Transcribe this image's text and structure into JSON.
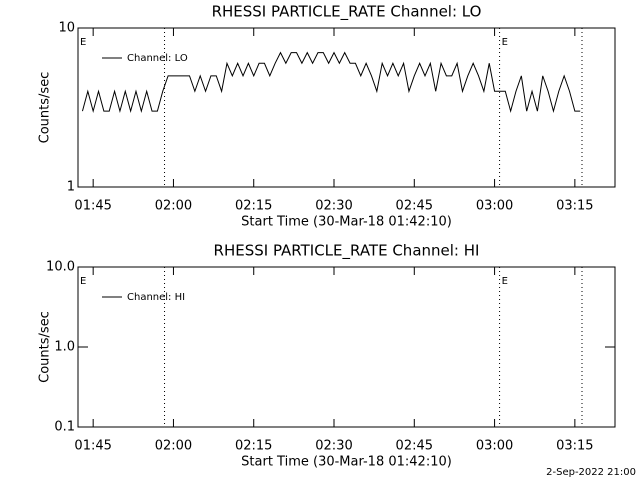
{
  "chart_data": [
    {
      "type": "line",
      "title": "RHESSI PARTICLE_RATE Channel: LO",
      "xlabel": "Start Time (30-Mar-18 01:42:10)",
      "ylabel": "Counts/sec",
      "x": [
        "01:43",
        "01:44",
        "01:45",
        "01:46",
        "01:47",
        "01:48",
        "01:49",
        "01:50",
        "01:51",
        "01:52",
        "01:53",
        "01:54",
        "01:55",
        "01:56",
        "01:57",
        "01:58",
        "01:59",
        "02:00",
        "02:01",
        "02:02",
        "02:03",
        "02:04",
        "02:05",
        "02:06",
        "02:07",
        "02:08",
        "02:09",
        "02:10",
        "02:11",
        "02:12",
        "02:13",
        "02:14",
        "02:15",
        "02:16",
        "02:17",
        "02:18",
        "02:19",
        "02:20",
        "02:21",
        "02:22",
        "02:23",
        "02:24",
        "02:25",
        "02:26",
        "02:27",
        "02:28",
        "02:29",
        "02:30",
        "02:31",
        "02:32",
        "02:33",
        "02:34",
        "02:35",
        "02:36",
        "02:37",
        "02:38",
        "02:39",
        "02:40",
        "02:41",
        "02:42",
        "02:43",
        "02:44",
        "02:45",
        "02:46",
        "02:47",
        "02:48",
        "02:49",
        "02:50",
        "02:51",
        "02:52",
        "02:53",
        "02:54",
        "02:55",
        "02:56",
        "02:57",
        "02:58",
        "02:59",
        "03:00",
        "03:01",
        "03:02",
        "03:03",
        "03:04",
        "03:05",
        "03:06",
        "03:07",
        "03:08",
        "03:09",
        "03:10",
        "03:11",
        "03:12",
        "03:13",
        "03:14",
        "03:15",
        "03:16"
      ],
      "series": [
        {
          "name": "Channel: LO",
          "color": "#000000",
          "values": [
            3,
            4,
            3,
            4,
            3,
            3,
            4,
            3,
            4,
            3,
            4,
            3,
            4,
            3,
            3,
            4,
            5,
            5,
            5,
            5,
            5,
            4,
            5,
            4,
            5,
            5,
            4,
            6,
            5,
            6,
            5,
            6,
            5,
            6,
            6,
            5,
            6,
            7,
            6,
            7,
            7,
            6,
            7,
            6,
            7,
            7,
            6,
            7,
            6,
            7,
            6,
            6,
            5,
            6,
            5,
            4,
            6,
            5,
            6,
            5,
            6,
            4,
            5,
            6,
            5,
            6,
            4,
            6,
            5,
            5,
            6,
            4,
            5,
            6,
            5,
            4,
            6,
            4,
            4,
            4,
            3,
            4,
            5,
            3,
            4,
            3,
            5,
            4,
            3,
            4,
            5,
            4,
            3,
            3
          ]
        }
      ],
      "xlim": [
        "01:42:10",
        "03:22:30"
      ],
      "xticks": [
        "01:45",
        "02:00",
        "02:15",
        "02:30",
        "02:45",
        "03:00",
        "03:15"
      ],
      "ylim": [
        1,
        10
      ],
      "yticks": [
        1,
        10
      ],
      "log_y": true,
      "vlines": [
        "01:58:20",
        "03:00:56",
        "03:16:20"
      ],
      "annotations": [
        {
          "text": "E",
          "x": "01:42:10"
        },
        {
          "text": "E",
          "x": "03:00:56"
        }
      ]
    },
    {
      "type": "line",
      "title": "RHESSI PARTICLE_RATE Channel: HI",
      "xlabel": "Start Time (30-Mar-18 01:42:10)",
      "ylabel": "Counts/sec",
      "x": [],
      "series": [
        {
          "name": "Channel: HI",
          "color": "#000000",
          "values": []
        }
      ],
      "xlim": [
        "01:42:10",
        "03:22:30"
      ],
      "xticks": [
        "01:45",
        "02:00",
        "02:15",
        "02:30",
        "02:45",
        "03:00",
        "03:15"
      ],
      "ylim": [
        0.1,
        10
      ],
      "yticks": [
        0.1,
        {
          "value": 1,
          "label": "1.0"
        },
        {
          "value": 10,
          "label": "10.0"
        }
      ],
      "log_y": true,
      "vlines": [
        "01:58:20",
        "03:00:56",
        "03:16:20"
      ],
      "annotations": [
        {
          "text": "E",
          "x": "01:42:10"
        },
        {
          "text": "E",
          "x": "03:00:56"
        }
      ]
    }
  ],
  "footer": "2-Sep-2022 21:00"
}
